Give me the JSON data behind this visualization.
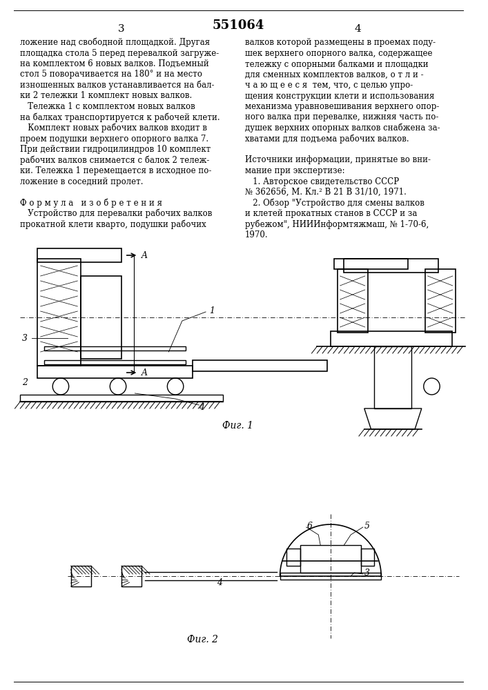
{
  "page_number_left": "3",
  "page_number_center": "551064",
  "page_number_right": "4",
  "bg_color": "#ffffff",
  "text_color": "#000000",
  "line_color": "#000000",
  "fig1_caption": "Фиг. 1",
  "fig2_caption": "Фиг. 2",
  "left_column_text": [
    "ложение над свободной площадкой. Другая",
    "площадка стола 5 перед перевалкой загруже-",
    "на комплектом 6 новых валков. Подъемный",
    "стол 5 поворачивается на 180° и на место",
    "изношенных валков устанавливается на бал-",
    "ки 2 тележки 1 комплект новых валков.",
    "   Тележка 1 с комплектом новых валков",
    "на балках транспортируется к рабочей клети.",
    "   Комплект новых рабочих валков входит в",
    "проем подушки верхнего опорного валка 7.",
    "При действии гидроцилиндров 10 комплект",
    "рабочих валков снимается с балок 2 тележ-",
    "ки. Тележка 1 перемещается в исходное по-",
    "ложение в соседний пролет.",
    "",
    "Ф о р м у л а   и з о б р е т е н и я",
    "   Устройство для перевалки рабочих валков",
    "прокатной клети кварто, подушки рабочих"
  ],
  "right_column_text": [
    "валков которой размещены в проемах поду-",
    "шек верхнего опорного валка, содержащее",
    "тележку с опорными балками и площадки",
    "для сменных комплектов валков, о т л и -",
    "ч а ю щ е е с я  тем, что, с целью упро-",
    "щения конструкции клети и использования",
    "механизма уравновешивания верхнего опор-",
    "ного валка при перевалке, нижняя часть по-",
    "душек верхних опорных валков снабжена за-",
    "хватами для подъема рабочих валков.",
    "",
    "Источники информации, принятые во вни-",
    "мание при экспертизе:",
    "   1. Авторское свидетельство СССР",
    "№ 362656, М. Кл.² В 21 В 31/10, 1971.",
    "   2. Обзор \"Устройство для смены валков",
    "и клетей прокатных станов в СССР и за",
    "рубежом\", НИИИнформтяжмаш, № 1-70-6,",
    "1970."
  ]
}
